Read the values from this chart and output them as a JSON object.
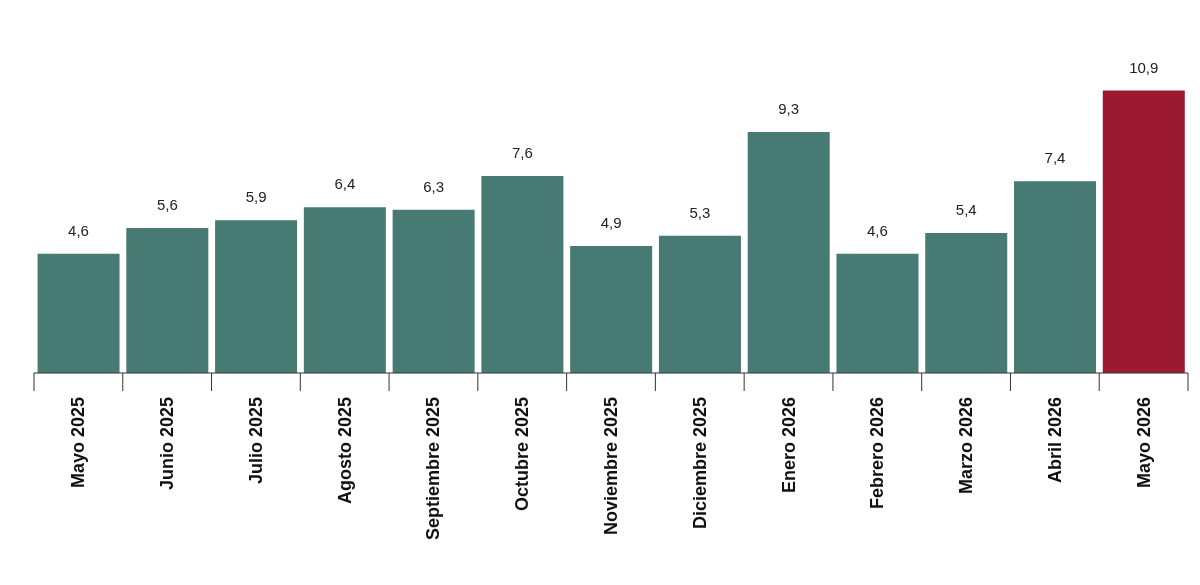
{
  "chart_data": {
    "type": "bar",
    "categories": [
      "Mayo 2025",
      "Junio 2025",
      "Julio 2025",
      "Agosto 2025",
      "Septiembre 2025",
      "Octubre 2025",
      "Noviembre 2025",
      "Diciembre 2025",
      "Enero 2026",
      "Febrero 2026",
      "Marzo 2026",
      "Abril 2026",
      "Mayo 2026"
    ],
    "values": [
      4.6,
      5.6,
      5.9,
      6.4,
      6.3,
      7.6,
      4.9,
      5.3,
      9.3,
      4.6,
      5.4,
      7.4,
      10.9
    ],
    "colors": [
      "#467a72",
      "#467a72",
      "#467a72",
      "#467a72",
      "#467a72",
      "#467a72",
      "#467a72",
      "#467a72",
      "#467a72",
      "#467a72",
      "#467a72",
      "#467a72",
      "#9b1a31"
    ],
    "value_labels": [
      "4,6",
      "5,6",
      "5,9",
      "6,4",
      "6,3",
      "7,6",
      "4,9",
      "5,3",
      "9,3",
      "4,6",
      "5,4",
      "7,4",
      "10,9"
    ],
    "grid": false,
    "legend": false
  }
}
